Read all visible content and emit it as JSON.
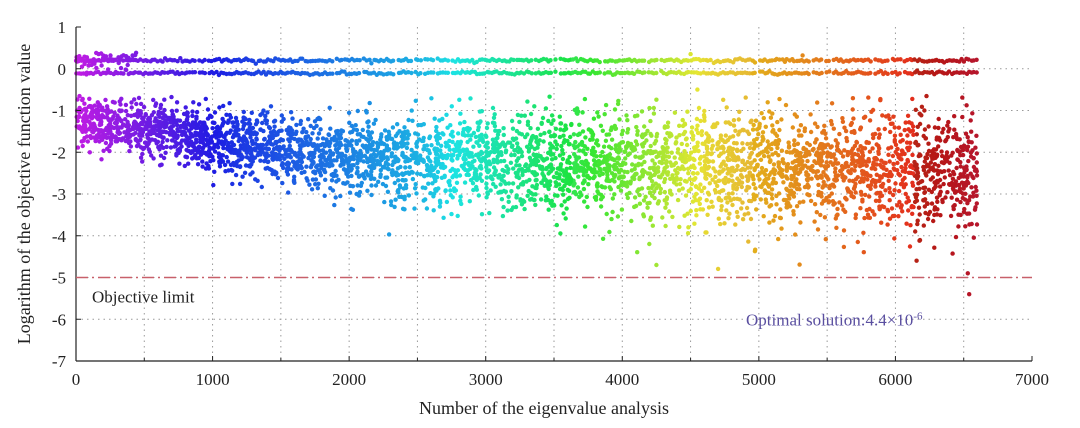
{
  "chart_data": {
    "type": "scatter",
    "xlabel": "Number of the eigenvalue analysis",
    "ylabel": "Logarithm of the objective function value",
    "xlim": [
      0,
      7000
    ],
    "ylim": [
      -7,
      1
    ],
    "xticks": [
      0,
      1000,
      2000,
      3000,
      4000,
      5000,
      6000,
      7000
    ],
    "yticks": [
      1,
      0,
      -1,
      -2,
      -3,
      -4,
      -5,
      -6,
      -7
    ],
    "grid": "dotted",
    "color_encoding": "rainbow by iteration number (purple → blue → cyan → green → yellow → orange → red)",
    "colors": {
      "objective_limit_line": "#c8606a",
      "optimal_text": "#5a4fa0",
      "grid": "#9a9a9a"
    },
    "series": [
      {
        "band": "upper",
        "points_x_range": [
          0,
          6600
        ],
        "y_upper_row": 0.2,
        "y_lower_row": -0.1
      },
      {
        "band": "main",
        "x_range": [
          0,
          6600
        ],
        "y_start_mean": -1.3,
        "y_mid_mean": -2.2,
        "y_end_mean": -2.5,
        "spread_end": [
          -5.4,
          -1.3
        ]
      }
    ],
    "reference_line": {
      "y": -5,
      "label": "Objective limit",
      "style": "dash-dot"
    },
    "annotations": [
      {
        "text_base": "Optimal solution:4.4×10",
        "text_sup": "-6",
        "position": "bottom-right"
      }
    ],
    "n_points": 6600
  }
}
